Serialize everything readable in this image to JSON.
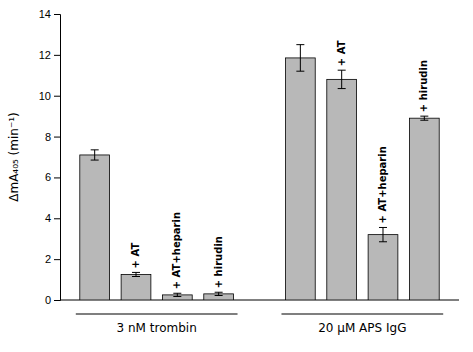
{
  "chart_data": {
    "type": "bar",
    "ylabel": "ΔmA₄₀₅ (min⁻¹)",
    "color": "#b8b8b8",
    "groups": [
      {
        "label": "3 nM trombin",
        "values": [
          7.1,
          1.25,
          0.25,
          0.3
        ],
        "errors": [
          0.25,
          0.1,
          0.08,
          0.08
        ],
        "annotations": [
          null,
          "+ AT",
          "+ AT+heparin",
          "+ hirudin"
        ]
      },
      {
        "label": "20 μM APS IgG",
        "values": [
          11.85,
          10.8,
          3.2,
          8.9
        ],
        "errors": [
          0.65,
          0.45,
          0.35,
          0.1
        ],
        "annotations": [
          null,
          "+ AT",
          "+ AT+heparin",
          "+ hirudin"
        ]
      }
    ],
    "ylim": [
      0,
      14
    ],
    "yticks": [
      0,
      2,
      4,
      6,
      8,
      10,
      12,
      14
    ],
    "grid": false
  }
}
